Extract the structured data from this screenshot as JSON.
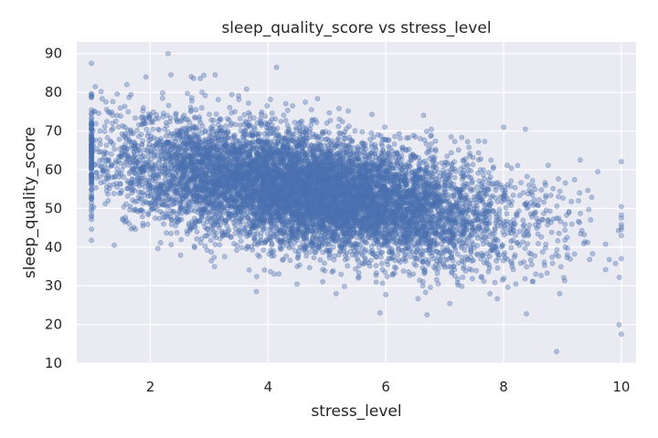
{
  "chart_data": {
    "type": "scatter",
    "title": "sleep_quality_score vs stress_level",
    "xlabel": "stress_level",
    "ylabel": "sleep_quality_score",
    "xlim": [
      0.75,
      10.25
    ],
    "ylim": [
      10,
      93
    ],
    "xticks": [
      2,
      4,
      6,
      8,
      10
    ],
    "yticks": [
      10,
      20,
      30,
      40,
      50,
      60,
      70,
      80,
      90
    ],
    "grid": true,
    "legend": "none",
    "point_color": "#4c72b0",
    "background_color": "#eaeaf2",
    "grid_color": "#ffffff",
    "series": [
      {
        "trend": {
          "slope": -2.3,
          "intercept_at_x1": 63,
          "noise_sd": 7.5
        },
        "approx_point_count": 9000,
        "clip_range": [
          1,
          10
        ],
        "sample_outliers": [
          {
            "x": 1.0,
            "y": 87.5
          },
          {
            "x": 2.3,
            "y": 90.0
          },
          {
            "x": 2.35,
            "y": 84.5
          },
          {
            "x": 3.1,
            "y": 84.5
          },
          {
            "x": 1.6,
            "y": 82.0
          },
          {
            "x": 3.8,
            "y": 28.5
          },
          {
            "x": 5.9,
            "y": 23.0
          },
          {
            "x": 6.7,
            "y": 22.5
          },
          {
            "x": 8.9,
            "y": 13.0
          },
          {
            "x": 10.0,
            "y": 17.5
          },
          {
            "x": 9.3,
            "y": 62.5
          },
          {
            "x": 9.6,
            "y": 59.5
          },
          {
            "x": 8.0,
            "y": 71.0
          }
        ]
      }
    ]
  }
}
